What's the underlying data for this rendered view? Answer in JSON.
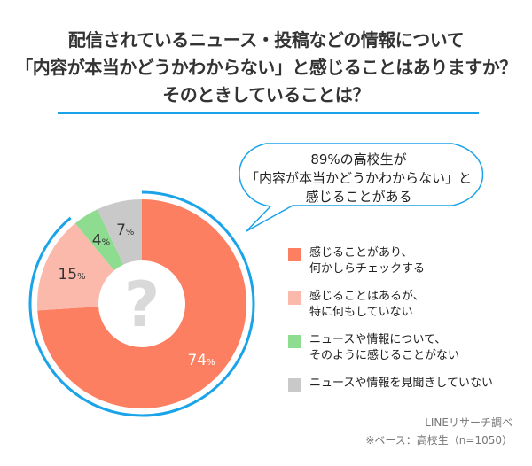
{
  "title_lines": [
    "配信されているニュース・投稿などの情報について",
    "「内容が本当かどうかわからない」と感じることはありますか？",
    "そのときしていることは？"
  ],
  "callout_lines": [
    "89%の高校生が",
    "「内容が本当かどうかわからない」と",
    "感じることがある"
  ],
  "center_symbol": "?",
  "source_lines": [
    "LINEリサーチ調べ",
    "※ベース：高校生（n=1050）"
  ],
  "colors": {
    "accent": "#1aa3e8"
  },
  "chart_data": {
    "type": "pie",
    "donut": true,
    "title": "配信されているニュース・投稿などの情報について「内容が本当かどうかわからない」と感じることはありますか？そのときしていることは？",
    "unit": "%",
    "highlight_total": 89,
    "slices": [
      {
        "label": "感じることがあり、\n何かしらチェックする",
        "value": 74,
        "display": "74",
        "color": "#fc7f62",
        "text_color": "#ffffff"
      },
      {
        "label": "感じることはあるが、\n特に何もしていない",
        "value": 15,
        "display": "15",
        "color": "#fbb9ab",
        "text_color": "#333333"
      },
      {
        "label": "ニュースや情報について、\nそのように感じることがない",
        "value": 4,
        "display": "4",
        "color": "#8edc8f",
        "text_color": "#333333"
      },
      {
        "label": "ニュースや情報を見聞きしていない",
        "value": 7,
        "display": "7",
        "color": "#c9c9c9",
        "text_color": "#333333"
      }
    ],
    "legend_position": "right"
  }
}
